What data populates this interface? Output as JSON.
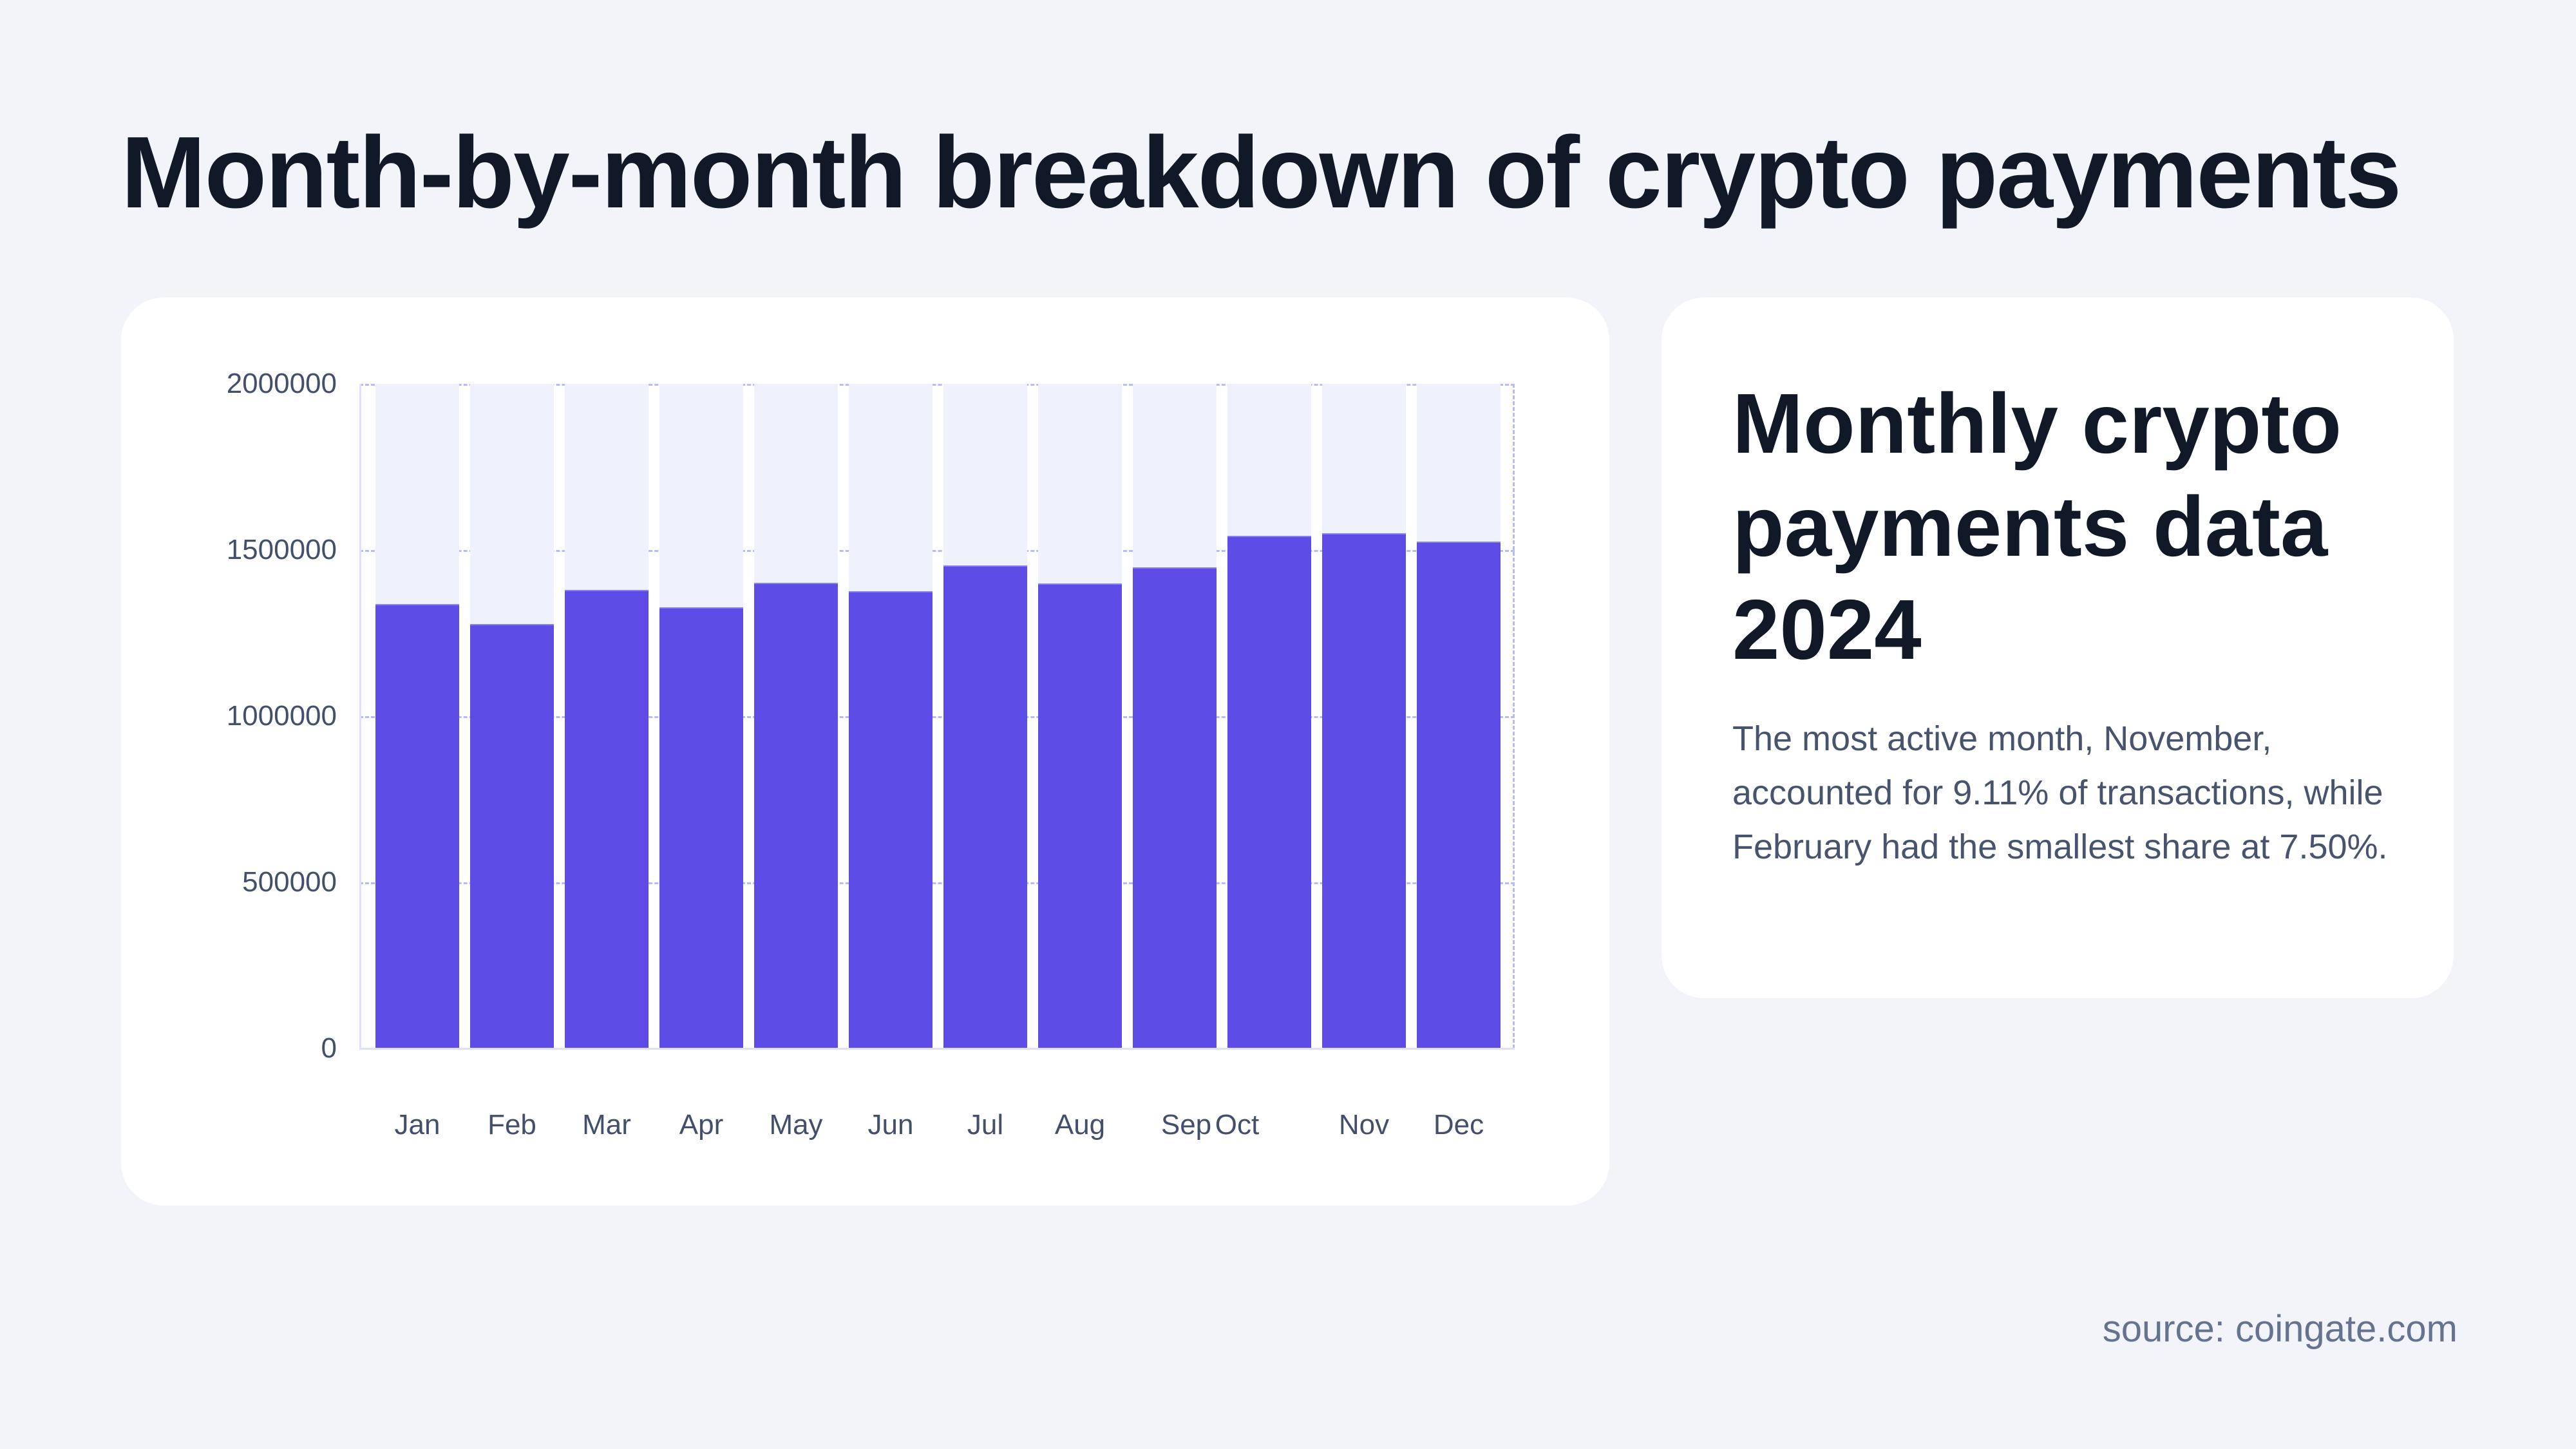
{
  "page": {
    "title": "Month-by-month breakdown of crypto payments",
    "source": "source: coingate.com"
  },
  "info_panel": {
    "heading": "Monthly crypto payments data 2024",
    "body": "The most active month, November, accounted for 9.11% of transactions, while February had the smallest share at 7.50%."
  },
  "colors": {
    "background": "#f2f4f9",
    "card": "#ffffff",
    "bar": "#5d4ce5",
    "bar_track": "#eff2fd",
    "gridline": "#b7bcf5",
    "heading_text": "#111827",
    "body_text": "#48546e",
    "axis_text": "#44506b"
  },
  "chart_data": {
    "type": "bar",
    "title": "Month-by-month breakdown of crypto payments",
    "xlabel": "",
    "ylabel": "",
    "categories": [
      "Jan",
      "Feb",
      "Mar",
      "Apr",
      "May",
      "Jun",
      "Jul",
      "Aug",
      "Sep",
      "Oct",
      "Nov",
      "Dec"
    ],
    "values": [
      1337000,
      1277000,
      1380000,
      1328000,
      1401000,
      1376000,
      1453000,
      1399000,
      1447000,
      1542000,
      1550000,
      1525000
    ],
    "ylim": [
      0,
      2000000
    ],
    "yticks": [
      "0",
      "500000",
      "1000000",
      "1500000",
      "2000000"
    ],
    "grid": true,
    "legend": null,
    "annotations": {
      "max_month": "November",
      "max_share": "9.11%",
      "min_month": "February",
      "min_share": "7.50%"
    }
  }
}
